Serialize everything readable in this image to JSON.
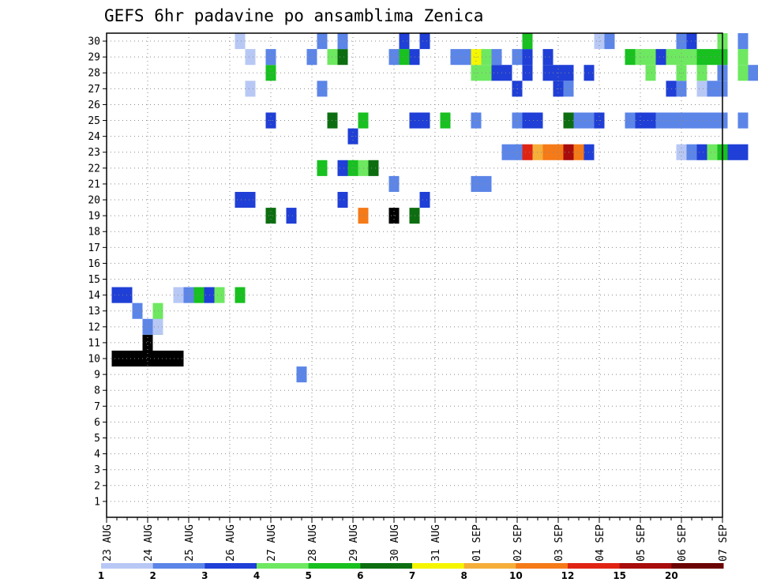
{
  "chart_data": {
    "type": "heatmap",
    "title": "GEFS 6hr padavine po ansamblima Zenica",
    "y_label_values": [
      "1",
      "2",
      "3",
      "4",
      "5",
      "6",
      "7",
      "8",
      "9",
      "10",
      "11",
      "12",
      "13",
      "14",
      "15",
      "16",
      "17",
      "18",
      "19",
      "20",
      "21",
      "22",
      "23",
      "24",
      "25",
      "26",
      "27",
      "28",
      "29",
      "30"
    ],
    "x_tick_labels": [
      "23 AUG",
      "24 AUG",
      "25 AUG",
      "26 AUG",
      "27 AUG",
      "28 AUG",
      "29 AUG",
      "30 AUG",
      "31 AUG",
      "01 SEP",
      "02 SEP",
      "03 SEP",
      "04 SEP",
      "05 SEP",
      "06 SEP",
      "07 SEP"
    ],
    "x_steps_per_day": 4,
    "grid": true,
    "legend": {
      "position": "bottom",
      "labels": [
        "1",
        "2",
        "3",
        "4",
        "5",
        "6",
        "7",
        "8",
        "10",
        "12",
        "15",
        "20"
      ],
      "colors": [
        "#b8c8f5",
        "#5c85e8",
        "#1f3fd6",
        "#6ee860",
        "#18c020",
        "#0c6e10",
        "#f5f500",
        "#f5ae3a",
        "#f57a18",
        "#e02414",
        "#a80c0c",
        "#6b0404"
      ]
    },
    "cells": [
      [
        29,
        4,
        11
      ],
      [
        1,
        4,
        12
      ],
      [
        1,
        19,
        9
      ],
      [
        30,
        1,
        10
      ],
      [
        30,
        2,
        10
      ],
      [
        30,
        3,
        10
      ],
      [
        30,
        4,
        10
      ],
      [
        30,
        5,
        10
      ],
      [
        30,
        6,
        10
      ],
      [
        30,
        7,
        10
      ],
      [
        3,
        5,
        13
      ],
      [
        4,
        5,
        12
      ],
      [
        0,
        5,
        12
      ],
      [
        1,
        3,
        13
      ],
      [
        2,
        1,
        14
      ],
      [
        2,
        2,
        14
      ],
      [
        0,
        7,
        14
      ],
      [
        1,
        8,
        14
      ],
      [
        4,
        9,
        14
      ],
      [
        2,
        10,
        14
      ],
      [
        3,
        11,
        14
      ],
      [
        4,
        13,
        14
      ],
      [
        2,
        18,
        19
      ],
      [
        5,
        16,
        19
      ],
      [
        8,
        25,
        19
      ],
      [
        12,
        28,
        19
      ],
      [
        5,
        30,
        19
      ],
      [
        2,
        13,
        20
      ],
      [
        2,
        14,
        20
      ],
      [
        2,
        23,
        20
      ],
      [
        2,
        31,
        20
      ],
      [
        1,
        28,
        21
      ],
      [
        1,
        36,
        21
      ],
      [
        1,
        37,
        21
      ],
      [
        4,
        21,
        22
      ],
      [
        2,
        23,
        22
      ],
      [
        4,
        24,
        22
      ],
      [
        3,
        25,
        22
      ],
      [
        5,
        26,
        22
      ],
      [
        1,
        39,
        23
      ],
      [
        1,
        40,
        23
      ],
      [
        9,
        41,
        23
      ],
      [
        7,
        42,
        23
      ],
      [
        8,
        43,
        23
      ],
      [
        8,
        44,
        23
      ],
      [
        10,
        45,
        23
      ],
      [
        8,
        46,
        23
      ],
      [
        2,
        47,
        23
      ],
      [
        0,
        56,
        23
      ],
      [
        1,
        57,
        23
      ],
      [
        2,
        58,
        23
      ],
      [
        3,
        59,
        23
      ],
      [
        4,
        60,
        23
      ],
      [
        2,
        61,
        23
      ],
      [
        2,
        62,
        23
      ],
      [
        2,
        24,
        24
      ],
      [
        2,
        16,
        25
      ],
      [
        5,
        22,
        25
      ],
      [
        4,
        25,
        25
      ],
      [
        2,
        30,
        25
      ],
      [
        2,
        31,
        25
      ],
      [
        4,
        33,
        25
      ],
      [
        1,
        36,
        25
      ],
      [
        1,
        40,
        25
      ],
      [
        2,
        41,
        25
      ],
      [
        2,
        42,
        25
      ],
      [
        5,
        45,
        25
      ],
      [
        1,
        46,
        25
      ],
      [
        1,
        47,
        25
      ],
      [
        2,
        48,
        25
      ],
      [
        1,
        51,
        25
      ],
      [
        2,
        52,
        25
      ],
      [
        2,
        53,
        25
      ],
      [
        1,
        54,
        25
      ],
      [
        1,
        55,
        25
      ],
      [
        1,
        56,
        25
      ],
      [
        1,
        57,
        25
      ],
      [
        1,
        58,
        25
      ],
      [
        1,
        59,
        25
      ],
      [
        1,
        60,
        25
      ],
      [
        1,
        62,
        25
      ],
      [
        1,
        64,
        25
      ],
      [
        2,
        65,
        25
      ],
      [
        2,
        67,
        25
      ],
      [
        1,
        68,
        25
      ],
      [
        2,
        69,
        25
      ],
      [
        1,
        70,
        25
      ],
      [
        1,
        72,
        25
      ],
      [
        2,
        74,
        25
      ],
      [
        0,
        14,
        27
      ],
      [
        1,
        21,
        27
      ],
      [
        2,
        40,
        27
      ],
      [
        2,
        44,
        27
      ],
      [
        1,
        45,
        27
      ],
      [
        2,
        55,
        27
      ],
      [
        1,
        56,
        27
      ],
      [
        0,
        58,
        27
      ],
      [
        1,
        59,
        27
      ],
      [
        1,
        60,
        27
      ],
      [
        0,
        65,
        27
      ],
      [
        3,
        66,
        27
      ],
      [
        2,
        67,
        27
      ],
      [
        2,
        69,
        27
      ],
      [
        1,
        70,
        27
      ],
      [
        5,
        74,
        27
      ],
      [
        6,
        75,
        27
      ],
      [
        4,
        16,
        28
      ],
      [
        3,
        36,
        28
      ],
      [
        3,
        37,
        28
      ],
      [
        2,
        38,
        28
      ],
      [
        2,
        39,
        28
      ],
      [
        2,
        41,
        28
      ],
      [
        2,
        43,
        28
      ],
      [
        2,
        44,
        28
      ],
      [
        2,
        45,
        28
      ],
      [
        2,
        47,
        28
      ],
      [
        3,
        53,
        28
      ],
      [
        3,
        56,
        28
      ],
      [
        3,
        58,
        28
      ],
      [
        1,
        60,
        28
      ],
      [
        3,
        62,
        28
      ],
      [
        1,
        63,
        28
      ],
      [
        2,
        64,
        28
      ],
      [
        5,
        66,
        28
      ],
      [
        5,
        67,
        28
      ],
      [
        5,
        68,
        28
      ],
      [
        1,
        71,
        28
      ],
      [
        1,
        72,
        28
      ],
      [
        0,
        14,
        29
      ],
      [
        1,
        16,
        29
      ],
      [
        0,
        20,
        29
      ],
      [
        1,
        20,
        29
      ],
      [
        3,
        22,
        29
      ],
      [
        5,
        23,
        29
      ],
      [
        1,
        28,
        29
      ],
      [
        4,
        29,
        29
      ],
      [
        2,
        30,
        29
      ],
      [
        1,
        34,
        29
      ],
      [
        1,
        35,
        29
      ],
      [
        6,
        36,
        29
      ],
      [
        3,
        37,
        29
      ],
      [
        1,
        38,
        29
      ],
      [
        1,
        40,
        29
      ],
      [
        2,
        41,
        29
      ],
      [
        2,
        43,
        29
      ],
      [
        4,
        51,
        29
      ],
      [
        3,
        52,
        29
      ],
      [
        3,
        53,
        29
      ],
      [
        2,
        54,
        29
      ],
      [
        3,
        55,
        29
      ],
      [
        3,
        56,
        29
      ],
      [
        3,
        57,
        29
      ],
      [
        4,
        58,
        29
      ],
      [
        4,
        59,
        29
      ],
      [
        4,
        60,
        29
      ],
      [
        3,
        62,
        29
      ],
      [
        1,
        64,
        29
      ],
      [
        2,
        66,
        29
      ],
      [
        3,
        70,
        29
      ],
      [
        1,
        71,
        29
      ],
      [
        1,
        72,
        29
      ],
      [
        3,
        74,
        29
      ],
      [
        0,
        13,
        30
      ],
      [
        1,
        21,
        30
      ],
      [
        1,
        23,
        30
      ],
      [
        2,
        29,
        30
      ],
      [
        2,
        31,
        30
      ],
      [
        4,
        41,
        30
      ],
      [
        0,
        48,
        30
      ],
      [
        1,
        49,
        30
      ],
      [
        1,
        56,
        30
      ],
      [
        2,
        57,
        30
      ],
      [
        3,
        60,
        30
      ],
      [
        1,
        62,
        30
      ],
      [
        2,
        64,
        30
      ],
      [
        1,
        66,
        30
      ],
      [
        3,
        68,
        30
      ],
      [
        1,
        69,
        30
      ],
      [
        3,
        75,
        30
      ]
    ]
  }
}
